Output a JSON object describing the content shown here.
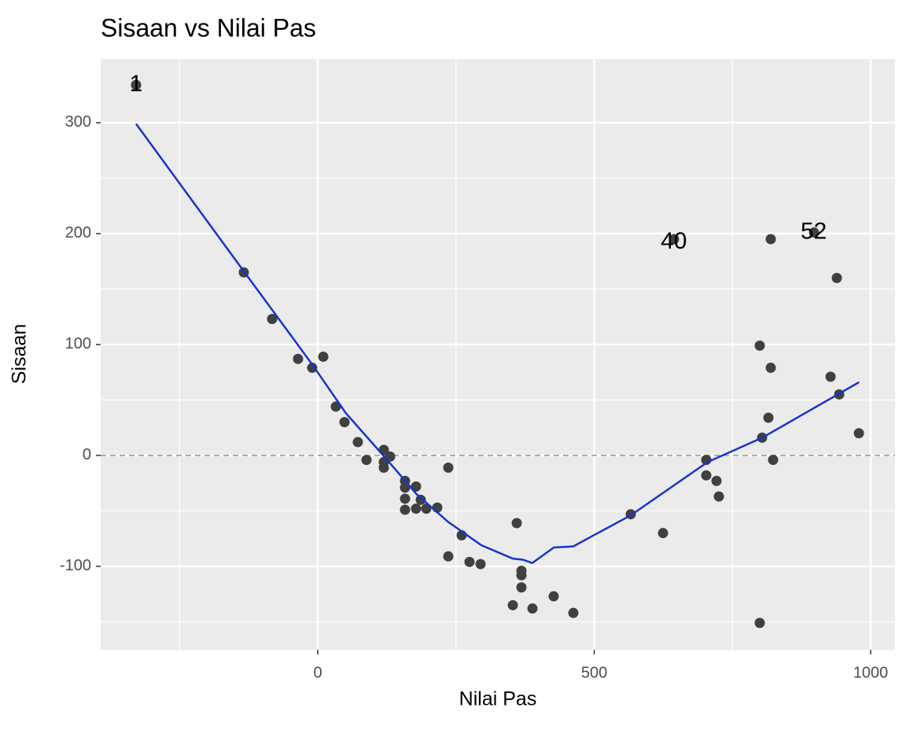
{
  "chart_data": {
    "type": "scatter",
    "title": "Sisaan vs Nilai Pas",
    "x_label": "Nilai Pas",
    "y_label": "Sisaan",
    "xlim": [
      -392.6,
      1044
    ],
    "ylim": [
      -175.2,
      357.4
    ],
    "xticks": [
      0,
      500,
      1000
    ],
    "yticks": [
      -100,
      0,
      100,
      200,
      300
    ],
    "x_minor_ticks": [
      -250,
      250,
      750
    ],
    "y_minor_ticks": [
      -150,
      -50,
      50,
      150,
      250
    ],
    "grid": true,
    "hline": 0,
    "point_color": "#404040",
    "line_color": "#1a33cc",
    "points": {
      "x": [
        -328.6,
        -133.7,
        -82.5,
        -35.6,
        -10,
        10,
        32.7,
        48.4,
        72.5,
        88.2,
        119.5,
        119.5,
        119.5,
        130.9,
        157.9,
        157.9,
        157.9,
        157.9,
        177.8,
        177.8,
        186.3,
        196.3,
        216.2,
        236.1,
        236.1,
        260.3,
        274.5,
        294.5,
        352.8,
        359.9,
        368.4,
        368.4,
        368.4,
        388.3,
        426.7,
        462.3,
        566.1,
        624.5,
        644.4,
        702.7,
        702.7,
        721.2,
        725.5,
        799.4,
        799.4,
        803.7,
        815.1,
        819.3,
        819.3,
        823.6,
        897.6,
        927.5,
        938.8,
        943.1,
        978.7
      ],
      "y": [
        334,
        165,
        123,
        87,
        79,
        89,
        44,
        30,
        12,
        -4,
        5,
        -6,
        -11,
        -1,
        -23,
        -29,
        -39,
        -49,
        -28,
        -48,
        -40,
        -48,
        -47,
        -11,
        -91,
        -72,
        -96,
        -98,
        -135,
        -61,
        -104,
        -108,
        -119,
        -138,
        -127,
        -142,
        -53,
        -70,
        195,
        -4,
        -18,
        -23,
        -37,
        99,
        -151,
        16,
        34,
        79,
        195,
        -4,
        201,
        71,
        160,
        55,
        20
      ]
    },
    "smooth": {
      "x": [
        -328.6,
        -133.7,
        -10,
        51,
        122,
        179,
        236,
        296,
        353,
        371,
        388,
        427,
        462,
        566,
        705,
        804,
        979
      ],
      "y": [
        299,
        166,
        82,
        38,
        -2,
        -35,
        -60,
        -81,
        -93,
        -94,
        -97,
        -83,
        -82,
        -54,
        -6,
        16,
        66
      ]
    },
    "annotations": [
      {
        "text": "1",
        "x": -328.6,
        "y": 334
      },
      {
        "text": "40",
        "x": 644,
        "y": 192
      },
      {
        "text": "52",
        "x": 897,
        "y": 201
      }
    ]
  }
}
